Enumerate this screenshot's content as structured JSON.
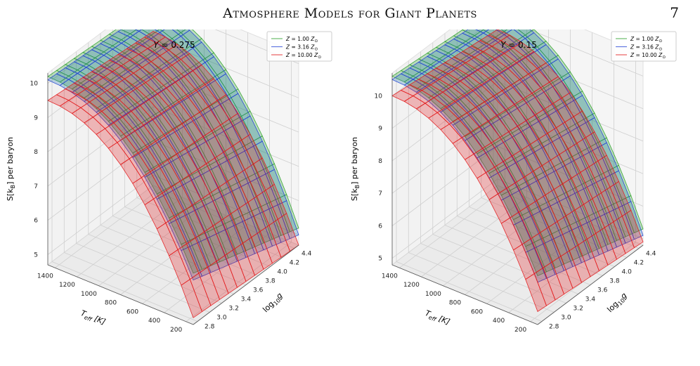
{
  "header": {
    "title": "Atmosphere Models for Giant Planets",
    "page_number": "7"
  },
  "chart_data": [
    {
      "type": "surface",
      "title": "Y = 0.275",
      "title_parts": {
        "var": "Y",
        "eq": " = ",
        "val": "0.275"
      },
      "xlabel": "T_eff [K]",
      "xlabel_parts": {
        "main": "T",
        "sub": "eff",
        "unit": " [K]"
      },
      "ylabel": "log10 g",
      "ylabel_parts": {
        "main": "log",
        "sub": "10",
        "var": "g"
      },
      "zlabel": "S[k_B] per baryon",
      "zlabel_parts": {
        "pre": "S[k",
        "sub": "B",
        "post": "] per baryon"
      },
      "xticks": [
        "1400",
        "1200",
        "1000",
        "800",
        "600",
        "400",
        "200"
      ],
      "yticks": [
        "2.8",
        "3.0",
        "3.2",
        "3.4",
        "3.6",
        "3.8",
        "4.0",
        "4.2",
        "4.4"
      ],
      "zticks": [
        "5",
        "6",
        "7",
        "8",
        "9",
        "10"
      ],
      "zlim": [
        4.7,
        10.3
      ],
      "legend_position": "top-right",
      "series": [
        {
          "name": "Z = 1.00 Z⊙",
          "legend_parts": {
            "var": "Z",
            "eq": " = ",
            "val": "1.00",
            "sub": "Z",
            "sym": "⊙"
          },
          "color": "#2ca02c",
          "fill": "#2ca02c",
          "corners": [
            10.2,
            10.0,
            6.2,
            5.2
          ]
        },
        {
          "name": "Z = 3.16 Z⊙",
          "legend_parts": {
            "var": "Z",
            "eq": " = ",
            "val": "3.16",
            "sub": "Z",
            "sym": "⊙"
          },
          "color": "#1f3fd6",
          "fill": "#1f77b4",
          "corners": [
            10.1,
            9.9,
            6.0,
            5.0
          ]
        },
        {
          "name": "Z = 10.00 Z⊙",
          "legend_parts": {
            "var": "Z",
            "eq": " = ",
            "val": "10.00",
            "sub": "Z",
            "sym": "⊙"
          },
          "color": "#e31a1c",
          "fill": "#e31a1c",
          "corners": [
            9.5,
            9.2,
            4.9,
            4.7
          ]
        }
      ]
    },
    {
      "type": "surface",
      "title": "Y = 0.15",
      "title_parts": {
        "var": "Y",
        "eq": " = ",
        "val": "0.15"
      },
      "xlabel": "T_eff [K]",
      "xlabel_parts": {
        "main": "T",
        "sub": "eff",
        "unit": " [K]"
      },
      "ylabel": "log10 g",
      "ylabel_parts": {
        "main": "log",
        "sub": "10",
        "var": "g"
      },
      "zlabel": "S[k_B] per baryon",
      "zlabel_parts": {
        "pre": "S[k",
        "sub": "B",
        "post": "] per baryon"
      },
      "xticks": [
        "1400",
        "1200",
        "1000",
        "800",
        "600",
        "400",
        "200"
      ],
      "yticks": [
        "2.8",
        "3.0",
        "3.2",
        "3.4",
        "3.6",
        "3.8",
        "4.0",
        "4.2",
        "4.4"
      ],
      "zticks": [
        "5",
        "6",
        "7",
        "8",
        "9",
        "10"
      ],
      "zlim": [
        4.8,
        10.7
      ],
      "legend_position": "top-right",
      "series": [
        {
          "name": "Z = 1.00 Z⊙",
          "legend_parts": {
            "var": "Z",
            "eq": " = ",
            "val": "1.00",
            "sub": "Z",
            "sym": "⊙"
          },
          "color": "#2ca02c",
          "fill": "#2ca02c",
          "corners": [
            10.6,
            10.3,
            6.3,
            5.3
          ]
        },
        {
          "name": "Z = 3.16 Z⊙",
          "legend_parts": {
            "var": "Z",
            "eq": " = ",
            "val": "3.16",
            "sub": "Z",
            "sym": "⊙"
          },
          "color": "#1f3fd6",
          "fill": "#1f77b4",
          "corners": [
            10.5,
            10.2,
            6.1,
            5.1
          ]
        },
        {
          "name": "Z = 10.00 Z⊙",
          "legend_parts": {
            "var": "Z",
            "eq": " = ",
            "val": "10.00",
            "sub": "Z",
            "sym": "⊙"
          },
          "color": "#e31a1c",
          "fill": "#e31a1c",
          "corners": [
            10.0,
            9.6,
            5.2,
            4.9
          ]
        }
      ]
    }
  ]
}
